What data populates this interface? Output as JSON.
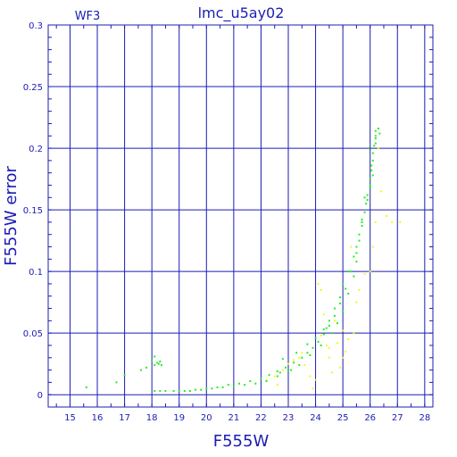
{
  "chart_data": {
    "type": "scatter",
    "title": "lmc_u5ay02",
    "corner_label": "WF3",
    "xlabel": "F555W",
    "ylabel": "F555W error",
    "xlim": [
      14.2,
      28.3
    ],
    "ylim": [
      -0.01,
      0.3
    ],
    "x_ticks": [
      "15",
      "16",
      "17",
      "18",
      "19",
      "20",
      "21",
      "22",
      "23",
      "24",
      "25",
      "26",
      "27",
      "28"
    ],
    "y_ticks": [
      "0",
      "0.05",
      "0.1",
      "0.15",
      "0.2",
      "0.25",
      "0.3"
    ],
    "x_tick_values": [
      15,
      16,
      17,
      18,
      19,
      20,
      21,
      22,
      23,
      24,
      25,
      26,
      27,
      28
    ],
    "y_tick_values": [
      0,
      0.05,
      0.1,
      0.15,
      0.2,
      0.25,
      0.3
    ],
    "grid": true,
    "colors": {
      "axis": "#1c1cb4",
      "grid": "#1c1cb4",
      "main_points": "#22ee22",
      "secondary_points": "#f5f51a"
    },
    "series": [
      {
        "color": "#22ee22",
        "x": [
          15.6,
          16.7,
          17.0,
          17.6,
          17.8,
          18.0,
          18.1,
          18.1,
          18.2,
          18.25,
          18.3,
          18.35,
          18.1,
          18.3,
          18.5,
          18.8,
          19.2,
          19.6,
          20.0,
          20.4,
          20.8,
          21.2,
          21.6,
          22.0,
          22.3,
          22.6,
          22.9,
          23.2,
          23.5,
          23.7,
          23.9,
          24.1,
          24.3,
          24.5,
          24.7,
          24.9,
          25.1,
          25.3,
          25.5,
          25.6,
          25.7,
          25.8,
          25.85,
          25.9,
          26.0,
          26.0,
          26.05,
          26.1,
          26.1,
          26.15,
          26.2,
          26.2,
          26.3,
          26.35,
          25.95,
          26.05,
          26.2,
          25.8,
          25.7,
          26.0,
          26.1,
          25.4,
          25.5,
          25.2,
          25.0,
          24.8,
          24.6,
          24.2,
          23.8,
          23.4,
          23.0,
          22.6,
          22.2,
          21.8,
          21.4,
          21.0,
          20.6,
          20.2,
          19.8,
          19.4,
          19.0,
          22.8,
          23.3,
          23.7,
          24.0,
          24.3,
          24.5,
          24.7,
          24.9,
          25.0,
          25.2,
          25.4,
          25.6,
          25.7,
          25.9,
          26.2,
          25.5,
          23.1,
          22.7,
          24.4
        ],
        "y": [
          0.006,
          0.01,
          0.016,
          0.02,
          0.022,
          0.028,
          0.031,
          0.024,
          0.026,
          0.025,
          0.027,
          0.024,
          0.003,
          0.003,
          0.003,
          0.003,
          0.003,
          0.004,
          0.005,
          0.006,
          0.008,
          0.009,
          0.011,
          0.013,
          0.016,
          0.019,
          0.022,
          0.026,
          0.03,
          0.034,
          0.038,
          0.043,
          0.049,
          0.056,
          0.064,
          0.074,
          0.086,
          0.1,
          0.115,
          0.125,
          0.137,
          0.148,
          0.155,
          0.162,
          0.17,
          0.175,
          0.182,
          0.19,
          0.196,
          0.202,
          0.208,
          0.214,
          0.216,
          0.212,
          0.2,
          0.186,
          0.204,
          0.16,
          0.142,
          0.168,
          0.178,
          0.096,
          0.108,
          0.082,
          0.068,
          0.058,
          0.05,
          0.04,
          0.032,
          0.024,
          0.019,
          0.015,
          0.011,
          0.009,
          0.008,
          0.007,
          0.006,
          0.005,
          0.004,
          0.003,
          0.003,
          0.029,
          0.034,
          0.041,
          0.046,
          0.053,
          0.06,
          0.07,
          0.079,
          0.09,
          0.1,
          0.112,
          0.13,
          0.14,
          0.158,
          0.21,
          0.12,
          0.02,
          0.018,
          0.054
        ]
      },
      {
        "color": "#f5f51a",
        "x": [
          22.2,
          22.5,
          22.8,
          23.0,
          23.2,
          23.4,
          23.6,
          23.8,
          24.0,
          24.1,
          24.2,
          24.3,
          24.4,
          24.5,
          24.6,
          24.7,
          24.8,
          24.9,
          25.0,
          25.1,
          25.2,
          25.3,
          25.4,
          25.6,
          25.8,
          26.0,
          26.1,
          26.2,
          26.4,
          26.6,
          26.8,
          27.1,
          24.2,
          24.5,
          23.9,
          25.0,
          25.5,
          26.3,
          22.6,
          23.5
        ],
        "y": [
          0.012,
          0.015,
          0.02,
          0.025,
          0.028,
          0.03,
          0.024,
          0.015,
          0.012,
          0.09,
          0.085,
          0.065,
          0.04,
          0.03,
          0.018,
          0.06,
          0.042,
          0.022,
          0.03,
          0.035,
          0.045,
          0.12,
          0.05,
          0.085,
          0.098,
          0.1,
          0.12,
          0.14,
          0.165,
          0.145,
          0.14,
          0.14,
          0.048,
          0.038,
          0.005,
          0.052,
          0.075,
          0.2,
          0.008,
          0.034
        ]
      }
    ]
  }
}
